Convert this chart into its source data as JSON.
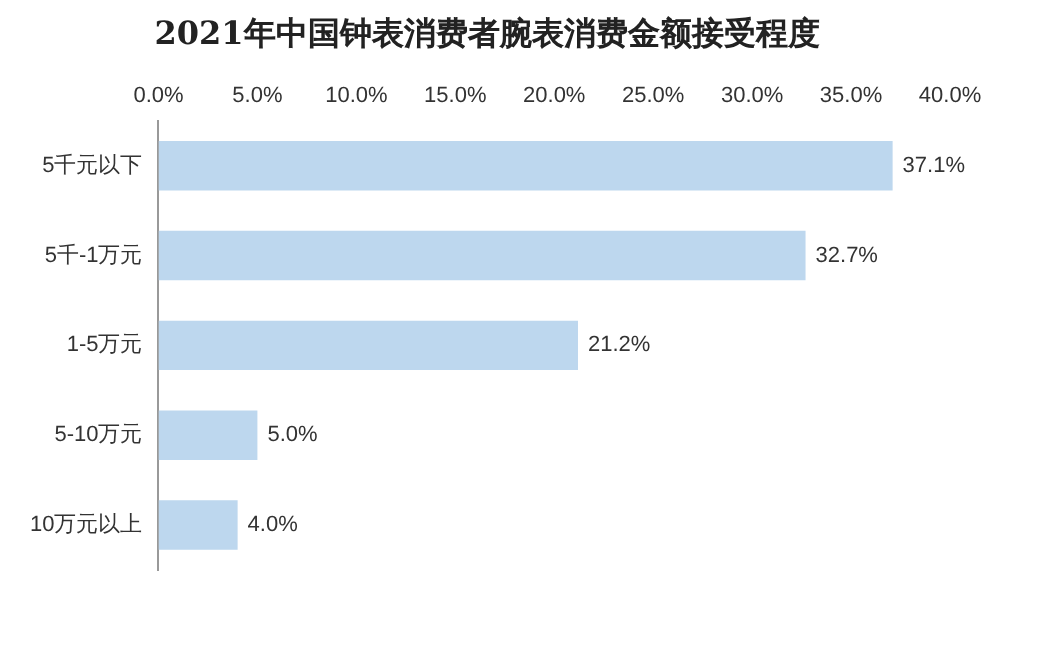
{
  "chart_data": {
    "type": "bar",
    "orientation": "horizontal",
    "title": "2021年中国钟表消费者腕表消费金额接受程度",
    "categories": [
      "5千元以下",
      "5千-1万元",
      "1-5万元",
      "5-10万元",
      "10万元以上"
    ],
    "values": [
      37.1,
      32.7,
      21.2,
      5.0,
      4.0
    ],
    "value_labels": [
      "37.1%",
      "32.7%",
      "21.2%",
      "5.0%",
      "4.0%"
    ],
    "color": "#bdd7ee",
    "xlim": [
      0,
      40
    ],
    "xticks": [
      {
        "value": 0,
        "label": "0.0%"
      },
      {
        "value": 5,
        "label": "5.0%"
      },
      {
        "value": 10,
        "label": "10.0%"
      },
      {
        "value": 15,
        "label": "15.0%"
      },
      {
        "value": 20,
        "label": "20.0%"
      },
      {
        "value": 25,
        "label": "25.0%"
      },
      {
        "value": 30,
        "label": "30.0%"
      },
      {
        "value": 35,
        "label": "35.0%"
      },
      {
        "value": 40,
        "label": "40.0%"
      }
    ],
    "grid": false,
    "legend": false
  }
}
